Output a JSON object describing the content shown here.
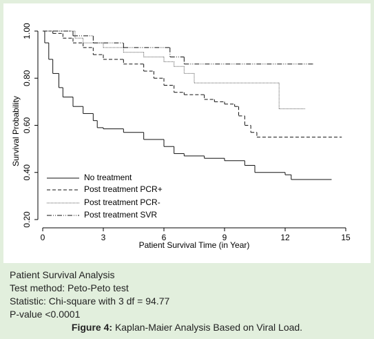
{
  "chart_data": {
    "type": "line",
    "step": true,
    "ylabel": "Survival Probability",
    "xlabel": "Patient Survival Time (in Year)",
    "xlim": [
      0,
      15
    ],
    "xticks": [
      0,
      3,
      6,
      9,
      12,
      15
    ],
    "ylim": [
      0.2,
      1
    ],
    "yticks": [
      {
        "value": 0.2,
        "label": "0.20"
      },
      {
        "value": 0.4,
        "label": "0.40"
      },
      {
        "value": 0.6,
        "label": "0.60"
      },
      {
        "value": 0.8,
        "label": "0.80"
      },
      {
        "value": 1,
        "label": "1.00"
      }
    ],
    "grid": false,
    "legend": "lower left",
    "series": [
      {
        "name": "No treatment",
        "color": "#111111",
        "dash": "none",
        "x": [
          0,
          0.1,
          0.3,
          0.5,
          0.8,
          1,
          1.5,
          2,
          2.5,
          2.7,
          3,
          4,
          5,
          6,
          6.5,
          7,
          8,
          9,
          10,
          10.5,
          12,
          12.3,
          14.3
        ],
        "values": [
          1,
          0.95,
          0.88,
          0.82,
          0.76,
          0.72,
          0.68,
          0.65,
          0.62,
          0.59,
          0.585,
          0.57,
          0.54,
          0.51,
          0.48,
          0.47,
          0.46,
          0.45,
          0.43,
          0.4,
          0.39,
          0.37,
          0.37
        ]
      },
      {
        "name": "Post treatment PCR+",
        "color": "#111111",
        "dash": "5 3",
        "x": [
          0,
          0.5,
          1,
          1.5,
          2,
          2.5,
          3,
          4,
          5,
          5.5,
          6,
          6.5,
          7,
          8,
          8.5,
          9,
          9.5,
          9.7,
          10,
          10.3,
          10.6,
          14.8
        ],
        "values": [
          1,
          0.99,
          0.97,
          0.95,
          0.93,
          0.9,
          0.88,
          0.86,
          0.83,
          0.8,
          0.77,
          0.74,
          0.73,
          0.71,
          0.7,
          0.69,
          0.68,
          0.64,
          0.6,
          0.57,
          0.55,
          0.55
        ]
      },
      {
        "name": "Post treatment PCR-",
        "color": "#555555",
        "dash": "1 1",
        "x": [
          0,
          1.6,
          2,
          3,
          4,
          5,
          6,
          6.5,
          7,
          7.5,
          11.7,
          13
        ],
        "values": [
          1,
          0.97,
          0.95,
          0.93,
          0.91,
          0.89,
          0.87,
          0.85,
          0.82,
          0.78,
          0.67,
          0.67
        ]
      },
      {
        "name": "Post treatment SVR",
        "color": "#111111",
        "dash": "7 2 1 2 1 2",
        "x": [
          0,
          1.5,
          2.5,
          4,
          6.3,
          7,
          13.4
        ],
        "values": [
          1,
          0.98,
          0.95,
          0.93,
          0.89,
          0.86,
          0.86
        ]
      }
    ]
  },
  "caption": {
    "lines": [
      "Patient Survival Analysis",
      "Test method: Peto-Peto test",
      "Statistic: Chi-square with 3 df = 94.77",
      "P-value <0.0001"
    ],
    "figure_label": "Figure 4:",
    "figure_title": "Kaplan-Maier Analysis Based on Viral Load."
  }
}
